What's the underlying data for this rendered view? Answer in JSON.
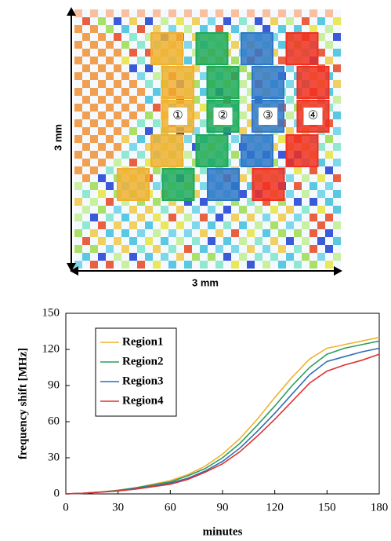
{
  "figure": {
    "height_label": "3 mm",
    "width_label": "3 mm",
    "region_markers": [
      "①",
      "②",
      "③",
      "④"
    ]
  },
  "chart_data": {
    "type": "line",
    "xlabel": "minutes",
    "ylabel": "frequency shift [MHz]",
    "x": [
      0,
      10,
      20,
      30,
      40,
      50,
      60,
      70,
      80,
      90,
      100,
      110,
      120,
      130,
      140,
      150,
      160,
      170,
      180
    ],
    "series": [
      {
        "name": "Region1",
        "color": "#f2b134",
        "values": [
          0,
          0.5,
          1.5,
          3,
          5,
          8,
          11,
          16,
          23,
          33,
          46,
          62,
          80,
          97,
          112,
          121,
          124,
          127,
          130
        ]
      },
      {
        "name": "Region2",
        "color": "#2e9e5a",
        "values": [
          0,
          0.5,
          1.5,
          3,
          5,
          7.5,
          10,
          15,
          21,
          30,
          42,
          57,
          73,
          90,
          105,
          116,
          121,
          124,
          127
        ]
      },
      {
        "name": "Region3",
        "color": "#2f6db5",
        "values": [
          0,
          0.5,
          1.5,
          2.5,
          4.5,
          6.5,
          9,
          13,
          19,
          27,
          38,
          52,
          67,
          83,
          99,
          110,
          114,
          118,
          121
        ]
      },
      {
        "name": "Region4",
        "color": "#e03030",
        "values": [
          0,
          0.5,
          1.5,
          2.5,
          4,
          6,
          8,
          12,
          18,
          25,
          35,
          48,
          62,
          77,
          92,
          102,
          107,
          111,
          116
        ]
      }
    ],
    "xlim": [
      0,
      180
    ],
    "xticks": [
      0,
      30,
      60,
      90,
      120,
      150,
      180
    ],
    "ylim": [
      0,
      150
    ],
    "yticks": [
      0,
      30,
      60,
      90,
      120,
      150
    ],
    "legend": "upper left"
  }
}
